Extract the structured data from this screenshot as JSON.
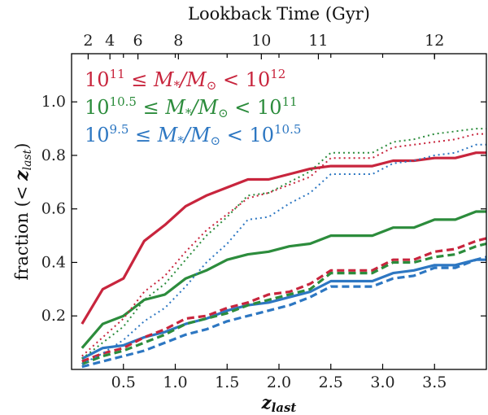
{
  "chart_data": {
    "type": "line",
    "xlabel": "z_last",
    "ylabel": "fraction (< z_last)",
    "top_axis_label": "Lookback Time (Gyr)",
    "xlim": [
      0,
      4.0
    ],
    "ylim": [
      0.0,
      1.18
    ],
    "x_ticks": [
      0.5,
      1.0,
      1.5,
      2.0,
      2.5,
      3.0,
      3.5
    ],
    "x_tick_labels": [
      "0.5",
      "1.0",
      "1.5",
      "2.0",
      "2.5",
      "3.0",
      "3.5"
    ],
    "y_ticks": [
      0.2,
      0.4,
      0.6,
      0.8,
      1.0
    ],
    "y_tick_labels": [
      "0.2",
      "0.4",
      "0.6",
      "0.8",
      "1.0"
    ],
    "top_ticks": [
      {
        "label": "2",
        "z": 0.16
      },
      {
        "label": "4",
        "z": 0.37
      },
      {
        "label": "6",
        "z": 0.64
      },
      {
        "label": "8",
        "z": 1.03
      },
      {
        "label": "10",
        "z": 1.83
      },
      {
        "label": "11",
        "z": 2.38
      },
      {
        "label": "12",
        "z": 3.5
      }
    ],
    "legend": [
      {
        "base": "10",
        "exp": "11",
        "mid": "≤ M",
        "sub": "*",
        "div": "/M",
        "odot": "⊙",
        "lt": "< 10",
        "exp2": "12",
        "color": "#c8253d"
      },
      {
        "base": "10",
        "exp": "10.5",
        "mid": "≤ M",
        "sub": "*",
        "div": "/M",
        "odot": "⊙",
        "lt": "< 10",
        "exp2": "11",
        "color": "#2c8c3c"
      },
      {
        "base": "10",
        "exp": "9.5",
        "mid": "≤ M",
        "sub": "*",
        "div": "/M",
        "odot": "⊙",
        "lt": "< 10",
        "exp2": "10.5",
        "color": "#2d77c2"
      }
    ],
    "series": [
      {
        "color": "#c8253d",
        "style": "solid",
        "x": [
          0.1,
          0.3,
          0.5,
          0.7,
          0.9,
          1.1,
          1.3,
          1.5,
          1.7,
          1.9,
          2.1,
          2.3,
          2.5,
          2.7,
          2.9,
          3.1,
          3.3,
          3.5,
          3.7,
          3.9,
          4.0
        ],
        "y": [
          0.17,
          0.3,
          0.34,
          0.48,
          0.54,
          0.61,
          0.65,
          0.68,
          0.71,
          0.71,
          0.73,
          0.75,
          0.76,
          0.76,
          0.76,
          0.78,
          0.78,
          0.79,
          0.79,
          0.81,
          0.81
        ]
      },
      {
        "color": "#2c8c3c",
        "style": "solid",
        "x": [
          0.1,
          0.3,
          0.5,
          0.7,
          0.9,
          1.1,
          1.3,
          1.5,
          1.7,
          1.9,
          2.1,
          2.3,
          2.5,
          2.7,
          2.9,
          3.1,
          3.3,
          3.5,
          3.7,
          3.9,
          4.0
        ],
        "y": [
          0.08,
          0.17,
          0.2,
          0.26,
          0.28,
          0.34,
          0.37,
          0.41,
          0.43,
          0.44,
          0.46,
          0.47,
          0.5,
          0.5,
          0.5,
          0.53,
          0.53,
          0.56,
          0.56,
          0.59,
          0.59
        ]
      },
      {
        "color": "#2d77c2",
        "style": "solid",
        "x": [
          0.1,
          0.3,
          0.5,
          0.7,
          0.9,
          1.1,
          1.3,
          1.5,
          1.7,
          1.9,
          2.1,
          2.3,
          2.5,
          2.7,
          2.9,
          3.1,
          3.3,
          3.5,
          3.7,
          3.9,
          4.0
        ],
        "y": [
          0.04,
          0.08,
          0.09,
          0.12,
          0.14,
          0.17,
          0.19,
          0.22,
          0.24,
          0.25,
          0.27,
          0.29,
          0.33,
          0.33,
          0.33,
          0.36,
          0.37,
          0.39,
          0.39,
          0.41,
          0.41
        ]
      },
      {
        "color": "#c8253d",
        "style": "dashed",
        "x": [
          0.1,
          0.3,
          0.5,
          0.7,
          0.9,
          1.1,
          1.3,
          1.5,
          1.7,
          1.9,
          2.1,
          2.3,
          2.5,
          2.7,
          2.9,
          3.1,
          3.3,
          3.5,
          3.7,
          3.9,
          4.0
        ],
        "y": [
          0.03,
          0.06,
          0.08,
          0.12,
          0.15,
          0.19,
          0.2,
          0.23,
          0.25,
          0.28,
          0.29,
          0.32,
          0.37,
          0.37,
          0.37,
          0.41,
          0.41,
          0.44,
          0.45,
          0.48,
          0.49
        ]
      },
      {
        "color": "#2c8c3c",
        "style": "dashed",
        "x": [
          0.1,
          0.3,
          0.5,
          0.7,
          0.9,
          1.1,
          1.3,
          1.5,
          1.7,
          1.9,
          2.1,
          2.3,
          2.5,
          2.7,
          2.9,
          3.1,
          3.3,
          3.5,
          3.7,
          3.9,
          4.0
        ],
        "y": [
          0.02,
          0.05,
          0.07,
          0.1,
          0.13,
          0.17,
          0.19,
          0.21,
          0.24,
          0.26,
          0.28,
          0.3,
          0.36,
          0.36,
          0.36,
          0.4,
          0.4,
          0.42,
          0.43,
          0.46,
          0.47
        ]
      },
      {
        "color": "#2d77c2",
        "style": "dashed",
        "x": [
          0.1,
          0.3,
          0.5,
          0.7,
          0.9,
          1.1,
          1.3,
          1.5,
          1.7,
          1.9,
          2.1,
          2.3,
          2.5,
          2.7,
          2.9,
          3.1,
          3.3,
          3.5,
          3.7,
          3.9,
          4.0
        ],
        "y": [
          0.01,
          0.03,
          0.05,
          0.07,
          0.1,
          0.13,
          0.15,
          0.18,
          0.2,
          0.22,
          0.24,
          0.27,
          0.31,
          0.31,
          0.31,
          0.34,
          0.35,
          0.38,
          0.38,
          0.41,
          0.42
        ]
      },
      {
        "color": "#c8253d",
        "style": "dotted",
        "x": [
          0.1,
          0.3,
          0.5,
          0.7,
          0.9,
          1.1,
          1.3,
          1.5,
          1.7,
          1.9,
          2.1,
          2.3,
          2.5,
          2.7,
          2.9,
          3.1,
          3.3,
          3.5,
          3.7,
          3.9,
          4.0
        ],
        "y": [
          0.05,
          0.12,
          0.19,
          0.29,
          0.35,
          0.44,
          0.52,
          0.58,
          0.64,
          0.66,
          0.69,
          0.72,
          0.79,
          0.79,
          0.79,
          0.83,
          0.84,
          0.85,
          0.86,
          0.88,
          0.88
        ]
      },
      {
        "color": "#2c8c3c",
        "style": "dotted",
        "x": [
          0.1,
          0.3,
          0.5,
          0.7,
          0.9,
          1.1,
          1.3,
          1.5,
          1.7,
          1.9,
          2.1,
          2.3,
          2.5,
          2.7,
          2.9,
          3.1,
          3.3,
          3.5,
          3.7,
          3.9,
          4.0
        ],
        "y": [
          0.04,
          0.1,
          0.16,
          0.26,
          0.32,
          0.41,
          0.5,
          0.57,
          0.65,
          0.66,
          0.7,
          0.74,
          0.81,
          0.81,
          0.81,
          0.85,
          0.86,
          0.88,
          0.89,
          0.9,
          0.9
        ]
      },
      {
        "color": "#2d77c2",
        "style": "dotted",
        "x": [
          0.1,
          0.3,
          0.5,
          0.7,
          0.9,
          1.1,
          1.3,
          1.5,
          1.7,
          1.9,
          2.1,
          2.3,
          2.5,
          2.7,
          2.9,
          3.1,
          3.3,
          3.5,
          3.7,
          3.9,
          4.0
        ],
        "y": [
          0.02,
          0.06,
          0.11,
          0.18,
          0.23,
          0.31,
          0.4,
          0.47,
          0.56,
          0.57,
          0.62,
          0.66,
          0.73,
          0.73,
          0.73,
          0.77,
          0.78,
          0.8,
          0.81,
          0.84,
          0.84
        ]
      }
    ]
  }
}
